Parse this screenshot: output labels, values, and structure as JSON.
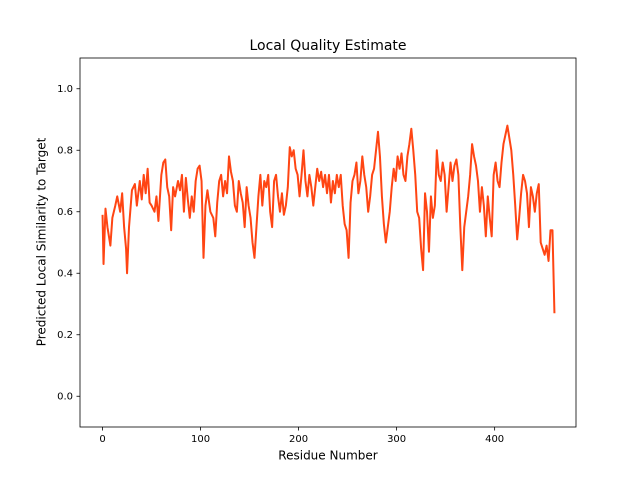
{
  "chart_data": {
    "type": "line",
    "title": "Local Quality Estimate",
    "xlabel": "Residue Number",
    "ylabel": "Predicted Local Similarity to Target",
    "color": "#ff4513",
    "x": [
      0,
      1,
      3,
      5,
      8,
      10,
      13,
      15,
      18,
      20,
      22,
      24,
      25,
      27,
      30,
      33,
      35,
      38,
      40,
      42,
      44,
      46,
      48,
      50,
      53,
      55,
      57,
      60,
      62,
      64,
      66,
      68,
      70,
      72,
      74,
      77,
      79,
      81,
      83,
      85,
      87,
      89,
      91,
      93,
      95,
      97,
      99,
      101,
      103,
      105,
      107,
      110,
      113,
      115,
      117,
      119,
      121,
      123,
      125,
      127,
      129,
      131,
      133,
      135,
      137,
      139,
      141,
      143,
      145,
      147,
      149,
      151,
      153,
      155,
      157,
      159,
      161,
      163,
      165,
      167,
      169,
      171,
      173,
      175,
      177,
      179,
      181,
      183,
      185,
      187,
      189,
      191,
      193,
      195,
      197,
      199,
      201,
      203,
      205,
      207,
      209,
      211,
      213,
      215,
      217,
      219,
      221,
      223,
      225,
      227,
      229,
      231,
      233,
      235,
      237,
      239,
      241,
      243,
      245,
      247,
      249,
      251,
      253,
      255,
      257,
      259,
      261,
      263,
      265,
      267,
      269,
      271,
      273,
      275,
      277,
      279,
      281,
      283,
      285,
      287,
      289,
      291,
      293,
      295,
      297,
      299,
      301,
      303,
      305,
      307,
      309,
      311,
      313,
      315,
      317,
      319,
      321,
      323,
      325,
      327,
      329,
      331,
      333,
      335,
      337,
      339,
      341,
      343,
      345,
      347,
      349,
      351,
      353,
      355,
      357,
      359,
      361,
      363,
      365,
      367,
      369,
      371,
      373,
      375,
      377,
      379,
      381,
      383,
      385,
      387,
      389,
      391,
      393,
      395,
      397,
      399,
      401,
      403,
      405,
      407,
      409,
      411,
      413,
      415,
      417,
      419,
      421,
      423,
      425,
      427,
      429,
      431,
      433,
      435,
      437,
      439,
      441,
      443,
      445,
      447,
      449,
      451,
      453,
      455,
      457,
      459,
      461
    ],
    "values": [
      0.59,
      0.43,
      0.61,
      0.55,
      0.49,
      0.58,
      0.62,
      0.65,
      0.6,
      0.66,
      0.55,
      0.48,
      0.4,
      0.55,
      0.67,
      0.69,
      0.62,
      0.7,
      0.64,
      0.72,
      0.66,
      0.74,
      0.63,
      0.62,
      0.6,
      0.65,
      0.57,
      0.72,
      0.76,
      0.77,
      0.68,
      0.65,
      0.54,
      0.68,
      0.65,
      0.7,
      0.67,
      0.72,
      0.6,
      0.71,
      0.64,
      0.58,
      0.65,
      0.6,
      0.7,
      0.74,
      0.75,
      0.7,
      0.45,
      0.62,
      0.67,
      0.6,
      0.58,
      0.52,
      0.63,
      0.7,
      0.72,
      0.65,
      0.7,
      0.66,
      0.78,
      0.73,
      0.7,
      0.62,
      0.6,
      0.7,
      0.66,
      0.63,
      0.55,
      0.68,
      0.62,
      0.58,
      0.5,
      0.45,
      0.55,
      0.65,
      0.72,
      0.62,
      0.7,
      0.68,
      0.72,
      0.6,
      0.55,
      0.7,
      0.72,
      0.65,
      0.6,
      0.66,
      0.59,
      0.62,
      0.68,
      0.81,
      0.78,
      0.8,
      0.74,
      0.72,
      0.65,
      0.72,
      0.8,
      0.7,
      0.65,
      0.72,
      0.68,
      0.62,
      0.68,
      0.74,
      0.7,
      0.73,
      0.68,
      0.72,
      0.66,
      0.72,
      0.63,
      0.7,
      0.66,
      0.72,
      0.68,
      0.72,
      0.62,
      0.56,
      0.54,
      0.45,
      0.63,
      0.7,
      0.72,
      0.76,
      0.66,
      0.7,
      0.78,
      0.72,
      0.68,
      0.6,
      0.65,
      0.72,
      0.74,
      0.8,
      0.86,
      0.78,
      0.65,
      0.56,
      0.5,
      0.55,
      0.6,
      0.68,
      0.74,
      0.7,
      0.78,
      0.74,
      0.79,
      0.72,
      0.7,
      0.78,
      0.82,
      0.87,
      0.8,
      0.72,
      0.6,
      0.58,
      0.48,
      0.41,
      0.66,
      0.6,
      0.47,
      0.65,
      0.58,
      0.62,
      0.8,
      0.72,
      0.7,
      0.76,
      0.72,
      0.6,
      0.68,
      0.76,
      0.7,
      0.75,
      0.77,
      0.72,
      0.55,
      0.41,
      0.55,
      0.6,
      0.65,
      0.72,
      0.82,
      0.78,
      0.75,
      0.7,
      0.6,
      0.68,
      0.62,
      0.52,
      0.65,
      0.58,
      0.52,
      0.72,
      0.76,
      0.7,
      0.68,
      0.76,
      0.82,
      0.85,
      0.88,
      0.84,
      0.8,
      0.72,
      0.62,
      0.51,
      0.58,
      0.66,
      0.72,
      0.7,
      0.66,
      0.55,
      0.68,
      0.65,
      0.6,
      0.66,
      0.69,
      0.5,
      0.48,
      0.46,
      0.49,
      0.44,
      0.54,
      0.54,
      0.27
    ],
    "xlim": [
      -23,
      483
    ],
    "ylim": [
      -0.1,
      1.1
    ],
    "xticks": [
      0,
      100,
      200,
      300,
      400
    ],
    "yticks": [
      {
        "value": 0,
        "label": "0.0"
      },
      0.2,
      0.4,
      0.6,
      0.8,
      {
        "value": 1,
        "label": "1.0"
      }
    ]
  }
}
